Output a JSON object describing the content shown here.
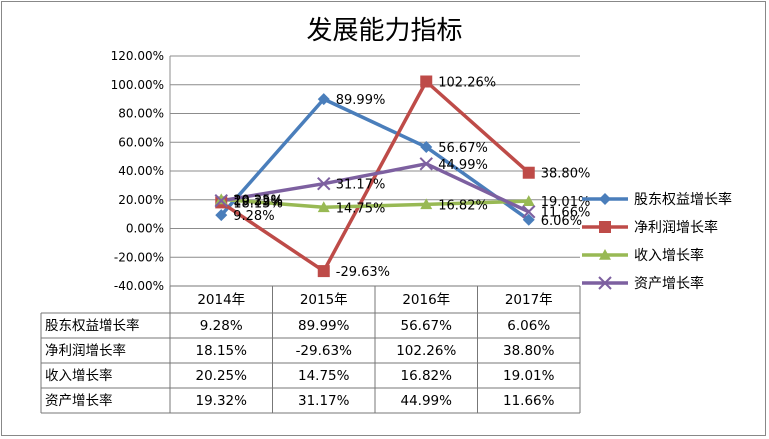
{
  "chart_data": {
    "type": "line",
    "title": "发展能力指标",
    "categories": [
      "2014年",
      "2015年",
      "2016年",
      "2017年"
    ],
    "yticks": [
      "120.00%",
      "100.00%",
      "80.00%",
      "60.00%",
      "40.00%",
      "20.00%",
      "0.00%",
      "-20.00%",
      "-40.00%"
    ],
    "ylim": [
      -40,
      120
    ],
    "grid": true,
    "legend_position": "right",
    "series": [
      {
        "name": "股东权益增长率",
        "values": [
          9.28,
          89.99,
          56.67,
          6.06
        ],
        "labels": [
          "9.28%",
          "89.99%",
          "56.67%",
          "6.06%"
        ],
        "color": "#4a7ebb",
        "marker": "diamond"
      },
      {
        "name": "净利润增长率",
        "values": [
          18.15,
          -29.63,
          102.26,
          38.8
        ],
        "labels": [
          "18.15%",
          "-29.63%",
          "102.26%",
          "38.80%"
        ],
        "color": "#be4b48",
        "marker": "square"
      },
      {
        "name": "收入增长率",
        "values": [
          20.25,
          14.75,
          16.82,
          19.01
        ],
        "labels": [
          "20.25%",
          "14.75%",
          "16.82%",
          "19.01%"
        ],
        "color": "#98b954",
        "marker": "triangle"
      },
      {
        "name": "资产增长率",
        "values": [
          19.32,
          31.17,
          44.99,
          11.66
        ],
        "labels": [
          "19.32%",
          "31.17%",
          "44.99%",
          "11.66%"
        ],
        "color": "#7d60a0",
        "marker": "x"
      }
    ]
  }
}
